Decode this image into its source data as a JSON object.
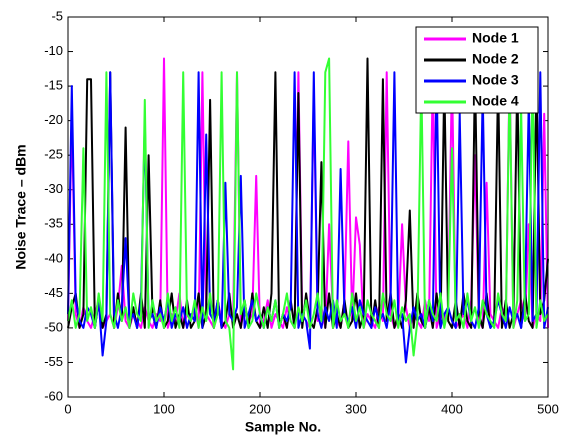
{
  "chart_data": {
    "type": "line",
    "xlabel": "Sample No.",
    "ylabel": "Noise Trace – dBm",
    "xlim": [
      0,
      500
    ],
    "xticks": [
      0,
      100,
      200,
      300,
      400,
      500
    ],
    "ylim": [
      -60,
      -5
    ],
    "yticks": [
      -60,
      -55,
      -50,
      -45,
      -40,
      -35,
      -30,
      -25,
      -20,
      -15,
      -10,
      -5
    ],
    "legend": "upper right",
    "x": [
      0,
      4,
      8,
      12,
      16,
      20,
      24,
      28,
      32,
      36,
      40,
      44,
      48,
      52,
      56,
      60,
      64,
      68,
      72,
      76,
      80,
      84,
      88,
      92,
      96,
      100,
      104,
      108,
      112,
      116,
      120,
      124,
      128,
      132,
      136,
      140,
      144,
      148,
      152,
      156,
      160,
      164,
      168,
      172,
      176,
      180,
      184,
      188,
      192,
      196,
      200,
      204,
      208,
      212,
      216,
      220,
      224,
      228,
      232,
      236,
      240,
      244,
      248,
      252,
      256,
      260,
      264,
      268,
      272,
      276,
      280,
      284,
      288,
      292,
      296,
      300,
      304,
      308,
      312,
      316,
      320,
      324,
      328,
      332,
      336,
      340,
      344,
      348,
      352,
      356,
      360,
      364,
      368,
      372,
      376,
      380,
      384,
      388,
      392,
      396,
      400,
      404,
      408,
      412,
      416,
      420,
      424,
      428,
      432,
      436,
      440,
      444,
      448,
      452,
      456,
      460,
      464,
      468,
      472,
      476,
      480,
      484,
      488,
      492,
      496,
      500
    ],
    "series": [
      {
        "name": "Node 1",
        "color": "#ff00ff",
        "values": [
          -49,
          -19,
          -48,
          -50,
          -47,
          -49,
          -50,
          -48,
          -46,
          -50,
          -49,
          -48,
          -50,
          -47,
          -41,
          -49,
          -50,
          -48,
          -49,
          -50,
          -47,
          -49,
          -50,
          -48,
          -49,
          -11,
          -50,
          -48,
          -49,
          -45,
          -50,
          -48,
          -49,
          -47,
          -50,
          -13,
          -48,
          -49,
          -50,
          -46,
          -49,
          -50,
          -48,
          -49,
          -13,
          -50,
          -47,
          -49,
          -48,
          -28,
          -50,
          -49,
          -46,
          -50,
          -48,
          -49,
          -50,
          -47,
          -49,
          -50,
          -13,
          -48,
          -49,
          -50,
          -16,
          -49,
          -47,
          -50,
          -35,
          -48,
          -49,
          -50,
          -46,
          -23,
          -49,
          -34,
          -38,
          -50,
          -48,
          -49,
          -50,
          -47,
          -49,
          -13,
          -48,
          -50,
          -49,
          -35,
          -47,
          -50,
          -48,
          -49,
          -50,
          -46,
          -49,
          -13,
          -50,
          -48,
          -49,
          -47,
          -13,
          -50,
          -49,
          -48,
          -50,
          -46,
          -25,
          -49,
          -50,
          -29,
          -48,
          -49,
          -50,
          -47,
          -49,
          -13,
          -50,
          -48,
          -46,
          -49,
          -35,
          -50,
          -48,
          -49,
          -19,
          -50
        ]
      },
      {
        "name": "Node 2",
        "color": "#000000",
        "values": [
          -50,
          -47,
          -45,
          -50,
          -48,
          -14,
          -14,
          -50,
          -46,
          -50,
          -48,
          -13,
          -50,
          -45,
          -49,
          -21,
          -50,
          -47,
          -50,
          -45,
          -50,
          -25,
          -48,
          -50,
          -46,
          -50,
          -49,
          -45,
          -50,
          -48,
          -50,
          -46,
          -50,
          -49,
          -45,
          -50,
          -48,
          -17,
          -50,
          -46,
          -50,
          -49,
          -45,
          -50,
          -48,
          -50,
          -46,
          -50,
          -45,
          -49,
          -50,
          -47,
          -50,
          -45,
          -13,
          -50,
          -48,
          -50,
          -46,
          -50,
          -16,
          -50,
          -45,
          -49,
          -50,
          -47,
          -26,
          -50,
          -45,
          -50,
          -48,
          -50,
          -46,
          -50,
          -49,
          -45,
          -50,
          -48,
          -11,
          -50,
          -46,
          -50,
          -14,
          -49,
          -45,
          -50,
          -48,
          -50,
          -46,
          -33,
          -50,
          -45,
          -49,
          -50,
          -47,
          -50,
          -45,
          -50,
          -14,
          -49,
          -50,
          -46,
          -50,
          -45,
          -49,
          -50,
          -13,
          -48,
          -50,
          -45,
          -50,
          -49,
          -14,
          -50,
          -46,
          -50,
          -48,
          -14,
          -50,
          -45,
          -49,
          -50,
          -14,
          -48,
          -46,
          -40
        ]
      },
      {
        "name": "Node 3",
        "color": "#0000ff",
        "values": [
          -48,
          -15,
          -46,
          -49,
          -50,
          -47,
          -48,
          -50,
          -46,
          -54,
          -49,
          -13,
          -48,
          -50,
          -47,
          -37,
          -49,
          -48,
          -50,
          -46,
          -20,
          -49,
          -48,
          -50,
          -47,
          -49,
          -46,
          -50,
          -48,
          -49,
          -47,
          -50,
          -48,
          -49,
          -13,
          -50,
          -22,
          -48,
          -49,
          -46,
          -50,
          -29,
          -48,
          -49,
          -47,
          -28,
          -50,
          -48,
          -46,
          -49,
          -48,
          -50,
          -47,
          -49,
          -46,
          -50,
          -48,
          -49,
          -47,
          -13,
          -50,
          -48,
          -49,
          -53,
          -13,
          -48,
          -50,
          -47,
          -49,
          -46,
          -50,
          -27,
          -48,
          -49,
          -47,
          -50,
          -46,
          -48,
          -49,
          -50,
          -47,
          -49,
          -48,
          -50,
          -46,
          -13,
          -49,
          -48,
          -55,
          -50,
          -47,
          -49,
          -48,
          -50,
          -46,
          -49,
          -13,
          -50,
          -48,
          -47,
          -49,
          -50,
          -19,
          -48,
          -46,
          -49,
          -50,
          -47,
          -16,
          -48,
          -50,
          -49,
          -46,
          -48,
          -50,
          -47,
          -49,
          -48,
          -50,
          -46,
          -17,
          -49,
          -48,
          -13,
          -50,
          -47
        ]
      },
      {
        "name": "Node 4",
        "color": "#33ff33",
        "values": [
          -49,
          -46,
          -50,
          -48,
          -24,
          -49,
          -47,
          -50,
          -45,
          -49,
          -13,
          -48,
          -50,
          -46,
          -49,
          -47,
          -50,
          -45,
          -48,
          -49,
          -17,
          -50,
          -46,
          -49,
          -48,
          -50,
          -45,
          -49,
          -47,
          -50,
          -13,
          -48,
          -49,
          -46,
          -50,
          -47,
          -49,
          -45,
          -50,
          -48,
          -13,
          -49,
          -50,
          -56,
          -13,
          -48,
          -46,
          -50,
          -49,
          -45,
          -48,
          -50,
          -47,
          -49,
          -46,
          -50,
          -48,
          -45,
          -49,
          -50,
          -47,
          -49,
          -46,
          -50,
          -48,
          -45,
          -49,
          -13,
          -11,
          -50,
          -46,
          -49,
          -48,
          -50,
          -45,
          -49,
          -47,
          -50,
          -46,
          -48,
          -49,
          -50,
          -45,
          -48,
          -49,
          -46,
          -50,
          -47,
          -49,
          -48,
          -54,
          -49,
          -14,
          -50,
          -46,
          -48,
          -49,
          -45,
          -50,
          -47,
          -24,
          -49,
          -48,
          -50,
          -45,
          -49,
          -47,
          -50,
          -46,
          -48,
          -49,
          -50,
          -45,
          -48,
          -49,
          -14,
          -50,
          -46,
          -18,
          -49,
          -48,
          -13,
          -50,
          -46,
          -49,
          -48
        ]
      }
    ]
  }
}
